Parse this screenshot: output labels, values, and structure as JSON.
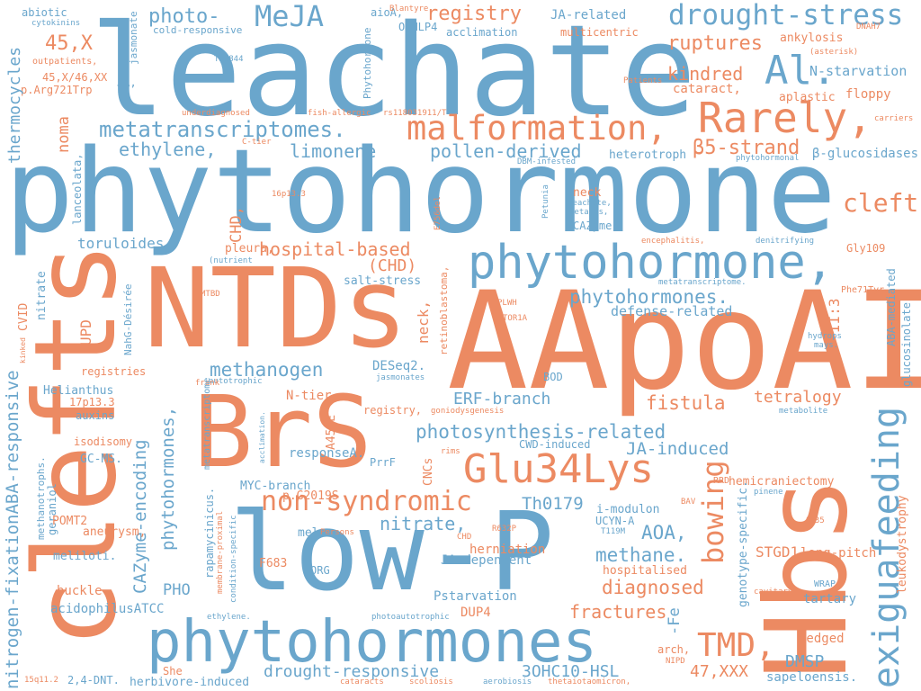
{
  "colors": {
    "blue": "#6aa6cc",
    "orange": "#ec8a62",
    "background": "#ffffff"
  },
  "words": [
    "leachate",
    "phytohormone",
    "NTDs",
    "AApoAI",
    "BrS",
    "clefts",
    "low-P",
    "Hbs",
    "phytohormones",
    "phytohormone,",
    "exiguafeeding",
    "Glu34Lys",
    "Rarely,",
    "malformation,",
    "drought-stress",
    "MeJA",
    "Al.",
    "non-syndromic",
    "metatranscriptomes.",
    "cleft",
    "bowing",
    "TMD,",
    "registry",
    "ruptures",
    "kindred",
    "β5-strand",
    "ethylene,",
    "limonene",
    "pollen-derived",
    "hospital-based",
    "(CHD)",
    "photo-",
    "45,X",
    "45,X/46,XX",
    "p.Arg721Trp",
    "thermocycles",
    "abiotic",
    "cytokinins",
    "outpatients,",
    "jasmonate",
    "aioA,",
    "OsNLP4",
    "JA-related",
    "acclimation",
    "multicentric",
    "cold-responsive",
    "Th3844",
    "Phytohormone",
    "Blantyre",
    "ankylosis",
    "N-starvation",
    "cataract,",
    "aplastic",
    "floppy",
    "Patients",
    "DNAH7",
    "(asterisk)",
    "carriers",
    "β-glucosidases",
    "phytohormonal",
    "heterotroph",
    "noma",
    "lanceolata,",
    "underdiagnosed",
    "fish-allergic",
    "rs118031911/T",
    "C-tier",
    "DBM-infested",
    "CHD,",
    "16p13.3",
    "E756del",
    "toruloides.",
    "(nutrient",
    "pleura,",
    "Petunia",
    "leachate,",
    "fetalis,",
    "neck",
    "CAZyme",
    "encephalitis,",
    "denitrifying",
    "Gly109",
    "phytohormones.",
    "defense-related",
    "Phe71Tyr",
    "II:3",
    "ABA-mediated",
    "glucosinolate",
    "hydrops",
    "mays.",
    "nitrogen-fixationABA-responsive",
    "CVID",
    "nitrate",
    "UPD",
    "NahG-Désirée",
    "MTBD",
    "metatranscriptome.",
    "PLWH",
    "TOR1A",
    "retinoblastoma,",
    "salt-stress",
    "neck,",
    "methanogen",
    "DESeq2.",
    "jasmonates",
    "BOD",
    "ERF-branch",
    "fistula",
    "tetralogy",
    "registries",
    "kinked",
    "autotrophic",
    "frank",
    "Helianthus",
    "17p13.3",
    "auxins",
    "registry,",
    "goniodysgenesis",
    "metabolite",
    "N-tier",
    "A454E",
    "photosynthesis-related",
    "JA-induced",
    "isodisomy",
    "rims",
    "CWD-induced",
    "GC-MS.",
    "CAZyme-encoding",
    "phytohormones,",
    "metatranscriptome",
    "acclimation.",
    "responseA.",
    "hemicraniectomy",
    "RRD",
    "pinene",
    "genotype-specific.",
    "leukodystrophy",
    "CNCs",
    "PrrF",
    "Th0179",
    "methanotrophs.",
    "geraniol",
    "MYC-branch",
    "p.G2019S",
    "i-modulon",
    "UCYN-A",
    "nitrate,",
    "AOA,",
    "T119M",
    "BAV",
    "A135",
    "POMT2",
    "aneurysm,",
    "rapamycinicus.",
    "membrane-proximal",
    "condition-specific",
    "melon.",
    "Persons",
    "R632P",
    "STGD1",
    "long-pitch",
    "meliloti.",
    "F683",
    "ORG",
    "herniation",
    "methane.",
    "JA-dependent",
    "CHD",
    "hospitalised",
    "cavitary",
    "WRAP",
    "buckle",
    "PHO",
    "diagnosed",
    "tartary",
    "acidophilusATCC",
    "Pstarvation",
    "DUP4",
    "fractures",
    "-Fe",
    "photoautotrophic",
    "ethylene.",
    "wedged",
    "arch,",
    "NIPD",
    "drought-responsive",
    "3OHC10-HSL",
    "47,XXX",
    "DMSP",
    "sapeloensis.",
    "She",
    "15q11.2",
    "2,4-DNT.",
    "herbivore-induced",
    "cataracts",
    "scoliosis",
    "aerobiosis",
    "thetaiotaomicron,"
  ]
}
